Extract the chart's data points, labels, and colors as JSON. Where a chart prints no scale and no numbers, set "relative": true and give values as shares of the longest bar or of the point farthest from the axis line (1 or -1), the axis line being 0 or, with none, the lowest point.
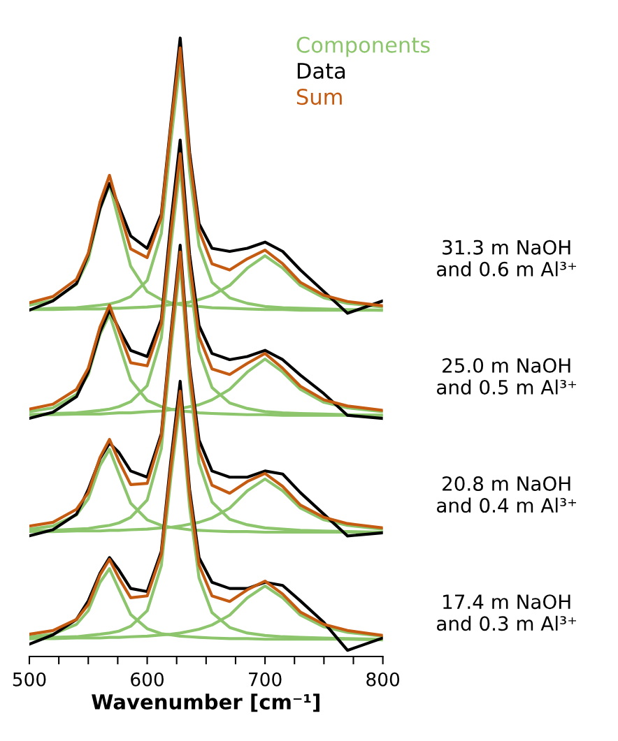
{
  "chart_data": {
    "type": "line",
    "relative": true,
    "xlabel": "Wavenumber [cm⁻¹]",
    "x": [
      500,
      520,
      540,
      550,
      560,
      568,
      576,
      586,
      600,
      612,
      620,
      628,
      636,
      644,
      655,
      670,
      685,
      700,
      715,
      730,
      750,
      770,
      800
    ],
    "xlim": [
      500,
      800
    ],
    "xticks": [
      500,
      {
        "value": 525,
        "label": null
      },
      {
        "value": 550,
        "label": null
      },
      {
        "value": 575,
        "label": null
      },
      600,
      {
        "value": 625,
        "label": null
      },
      {
        "value": 650,
        "label": null
      },
      {
        "value": 675,
        "label": null
      },
      700,
      {
        "value": 725,
        "label": null
      },
      {
        "value": 750,
        "label": null
      },
      {
        "value": 775,
        "label": null
      },
      800
    ],
    "grid": false,
    "legend": "top right",
    "marker": "none",
    "line_style": "solid",
    "series": [
      {
        "name": "Components",
        "color": "#8cc56c",
        "values": [
          0.568,
          0.576,
          0.602,
          0.642,
          0.723,
          0.763,
          0.704,
          0.631,
          0.59,
          0.577,
          0.572,
          0.569,
          0.567,
          0.566,
          0.564,
          0.563,
          0.562,
          0.561,
          0.561,
          0.56,
          0.56,
          0.56,
          0.56
        ]
      },
      {
        "color": "#8cc56c",
        "values": [
          0.561,
          0.563,
          0.564,
          0.566,
          0.568,
          0.57,
          0.574,
          0.582,
          0.608,
          0.684,
          0.832,
          0.962,
          0.784,
          0.664,
          0.605,
          0.58,
          0.571,
          0.566,
          0.564,
          0.563,
          0.562,
          0.561,
          0.56
        ]
      },
      {
        "color": "#8cc56c",
        "values": [
          0.561,
          0.561,
          0.562,
          0.562,
          0.562,
          0.563,
          0.563,
          0.564,
          0.565,
          0.567,
          0.569,
          0.571,
          0.573,
          0.577,
          0.584,
          0.6,
          0.628,
          0.648,
          0.628,
          0.6,
          0.58,
          0.571,
          0.565
        ]
      },
      {
        "color": "#8cc56c",
        "values": [
          0.396,
          0.402,
          0.424,
          0.456,
          0.521,
          0.553,
          0.506,
          0.447,
          0.414,
          0.404,
          0.4,
          0.397,
          0.396,
          0.394,
          0.393,
          0.392,
          0.391,
          0.391,
          0.39,
          0.39,
          0.39,
          0.39,
          0.39
        ]
      },
      {
        "color": "#8cc56c",
        "values": [
          0.391,
          0.393,
          0.394,
          0.396,
          0.398,
          0.4,
          0.404,
          0.412,
          0.438,
          0.515,
          0.663,
          0.793,
          0.614,
          0.494,
          0.435,
          0.41,
          0.401,
          0.396,
          0.394,
          0.393,
          0.392,
          0.391,
          0.39
        ]
      },
      {
        "color": "#8cc56c",
        "values": [
          0.391,
          0.391,
          0.392,
          0.392,
          0.392,
          0.393,
          0.394,
          0.394,
          0.396,
          0.397,
          0.399,
          0.401,
          0.404,
          0.407,
          0.415,
          0.432,
          0.46,
          0.481,
          0.46,
          0.432,
          0.411,
          0.402,
          0.396
        ]
      },
      {
        "color": "#8cc56c",
        "values": [
          0.206,
          0.211,
          0.229,
          0.255,
          0.309,
          0.335,
          0.296,
          0.248,
          0.221,
          0.212,
          0.209,
          0.207,
          0.205,
          0.204,
          0.203,
          0.202,
          0.202,
          0.201,
          0.201,
          0.201,
          0.201,
          0.201,
          0.201
        ]
      },
      {
        "color": "#8cc56c",
        "values": [
          0.203,
          0.204,
          0.206,
          0.207,
          0.21,
          0.212,
          0.216,
          0.225,
          0.253,
          0.336,
          0.495,
          0.636,
          0.443,
          0.313,
          0.25,
          0.222,
          0.213,
          0.208,
          0.206,
          0.204,
          0.203,
          0.202,
          0.201
        ]
      },
      {
        "color": "#8cc56c",
        "values": [
          0.202,
          0.202,
          0.203,
          0.203,
          0.203,
          0.204,
          0.204,
          0.205,
          0.206,
          0.208,
          0.209,
          0.211,
          0.214,
          0.217,
          0.224,
          0.24,
          0.268,
          0.287,
          0.268,
          0.24,
          0.221,
          0.212,
          0.206
        ]
      },
      {
        "color": "#8cc56c",
        "values": [
          0.032,
          0.036,
          0.052,
          0.074,
          0.12,
          0.142,
          0.109,
          0.068,
          0.045,
          0.037,
          0.035,
          0.033,
          0.032,
          0.031,
          0.03,
          0.029,
          0.029,
          0.028,
          0.028,
          0.028,
          0.028,
          0.028,
          0.027
        ]
      },
      {
        "color": "#8cc56c",
        "values": [
          0.029,
          0.031,
          0.032,
          0.034,
          0.036,
          0.038,
          0.041,
          0.049,
          0.074,
          0.147,
          0.288,
          0.412,
          0.242,
          0.127,
          0.071,
          0.047,
          0.038,
          0.034,
          0.032,
          0.031,
          0.03,
          0.029,
          0.028
        ]
      },
      {
        "color": "#8cc56c",
        "values": [
          0.029,
          0.029,
          0.03,
          0.03,
          0.03,
          0.031,
          0.031,
          0.032,
          0.033,
          0.035,
          0.036,
          0.038,
          0.041,
          0.044,
          0.051,
          0.067,
          0.095,
          0.114,
          0.095,
          0.067,
          0.048,
          0.039,
          0.033
        ]
      },
      {
        "name": "Data",
        "color": "#000000",
        "values": [
          0.56,
          0.575,
          0.603,
          0.65,
          0.725,
          0.765,
          0.728,
          0.68,
          0.66,
          0.715,
          0.86,
          1.0,
          0.815,
          0.7,
          0.66,
          0.655,
          0.66,
          0.67,
          0.655,
          0.625,
          0.59,
          0.555,
          0.575
        ]
      },
      {
        "color": "#000000",
        "values": [
          0.385,
          0.395,
          0.42,
          0.46,
          0.525,
          0.56,
          0.53,
          0.495,
          0.485,
          0.545,
          0.7,
          0.835,
          0.65,
          0.535,
          0.49,
          0.48,
          0.485,
          0.495,
          0.48,
          0.455,
          0.425,
          0.39,
          0.385
        ]
      },
      {
        "color": "#000000",
        "values": [
          0.195,
          0.205,
          0.23,
          0.27,
          0.32,
          0.345,
          0.33,
          0.3,
          0.29,
          0.36,
          0.52,
          0.665,
          0.47,
          0.35,
          0.3,
          0.29,
          0.29,
          0.3,
          0.295,
          0.265,
          0.23,
          0.195,
          0.2
        ]
      },
      {
        "color": "#000000",
        "values": [
          0.02,
          0.035,
          0.06,
          0.09,
          0.135,
          0.16,
          0.14,
          0.11,
          0.105,
          0.17,
          0.315,
          0.445,
          0.27,
          0.16,
          0.12,
          0.11,
          0.11,
          0.12,
          0.115,
          0.09,
          0.055,
          0.01,
          0.03
        ]
      },
      {
        "name": "Sum",
        "color": "#c55a11",
        "values": [
          0.572,
          0.582,
          0.61,
          0.652,
          0.735,
          0.778,
          0.723,
          0.659,
          0.645,
          0.71,
          0.855,
          0.984,
          0.806,
          0.689,
          0.635,
          0.625,
          0.643,
          0.657,
          0.635,
          0.605,
          0.584,
          0.574,
          0.567
        ]
      },
      {
        "color": "#c55a11",
        "values": [
          0.4,
          0.408,
          0.432,
          0.466,
          0.533,
          0.568,
          0.526,
          0.475,
          0.47,
          0.538,
          0.684,
          0.813,
          0.636,
          0.517,
          0.465,
          0.456,
          0.474,
          0.49,
          0.466,
          0.437,
          0.415,
          0.405,
          0.398
        ]
      },
      {
        "color": "#c55a11",
        "values": [
          0.211,
          0.217,
          0.238,
          0.265,
          0.322,
          0.351,
          0.316,
          0.278,
          0.28,
          0.356,
          0.513,
          0.654,
          0.462,
          0.334,
          0.277,
          0.264,
          0.283,
          0.296,
          0.275,
          0.245,
          0.225,
          0.215,
          0.208
        ]
      },
      {
        "color": "#c55a11",
        "values": [
          0.036,
          0.042,
          0.06,
          0.084,
          0.132,
          0.157,
          0.127,
          0.095,
          0.098,
          0.165,
          0.305,
          0.429,
          0.261,
          0.148,
          0.098,
          0.089,
          0.108,
          0.122,
          0.101,
          0.072,
          0.052,
          0.042,
          0.034
        ]
      }
    ],
    "annotations": [
      "31.3 m NaOH\nand 0.6 m Al³⁺",
      "25.0 m NaOH\nand 0.5 m Al³⁺",
      "20.8 m NaOH\nand 0.4 m Al³⁺",
      "17.4 m NaOH\nand 0.3 m Al³⁺"
    ]
  }
}
